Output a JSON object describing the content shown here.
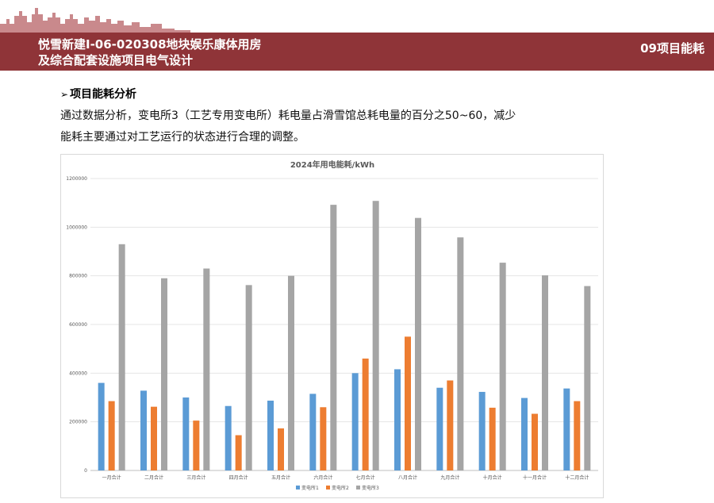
{
  "header": {
    "title_line1": "悦雪新建I-06-020308地块娱乐康体用房",
    "title_line2": "及综合配套设施项目电气设计",
    "section": "09项目能耗"
  },
  "content": {
    "heading": "项目能耗分析",
    "paragraph_line1": "通过数据分析，变电所3（工艺专用变电所）耗电量占滑雪馆总耗电量的百分之50~60，减少",
    "paragraph_line2": "能耗主要通过对工艺运行的状态进行合理的调整。"
  },
  "colors": {
    "header_bg": "#8f3438",
    "series": [
      "#5b9bd5",
      "#ed7d31",
      "#a5a5a5"
    ]
  },
  "chart_data": {
    "type": "bar",
    "title": "2024年用电能耗/kWh",
    "categories": [
      "一月合计",
      "二月合计",
      "三月合计",
      "四月合计",
      "五月合计",
      "六月合计",
      "七月合计",
      "八月合计",
      "九月合计",
      "十月合计",
      "十一月合计",
      "十二月合计"
    ],
    "series": [
      {
        "name": "变电所1",
        "values": [
          360000,
          328000,
          300000,
          265000,
          287000,
          315000,
          400000,
          416000,
          340000,
          323000,
          298000,
          337000
        ]
      },
      {
        "name": "变电所2",
        "values": [
          285000,
          262000,
          205000,
          145000,
          173000,
          260000,
          460000,
          550000,
          370000,
          258000,
          233000,
          285000
        ]
      },
      {
        "name": "变电所3",
        "values": [
          930000,
          790000,
          830000,
          762000,
          800000,
          1092000,
          1108000,
          1038000,
          958000,
          854000,
          802000,
          758000
        ]
      }
    ],
    "ylim": [
      0,
      1200000
    ],
    "yticks": [
      "0",
      "200000",
      "400000",
      "600000",
      "800000",
      "1000000",
      "1200000"
    ],
    "grid": true,
    "legend_position": "bottom"
  }
}
